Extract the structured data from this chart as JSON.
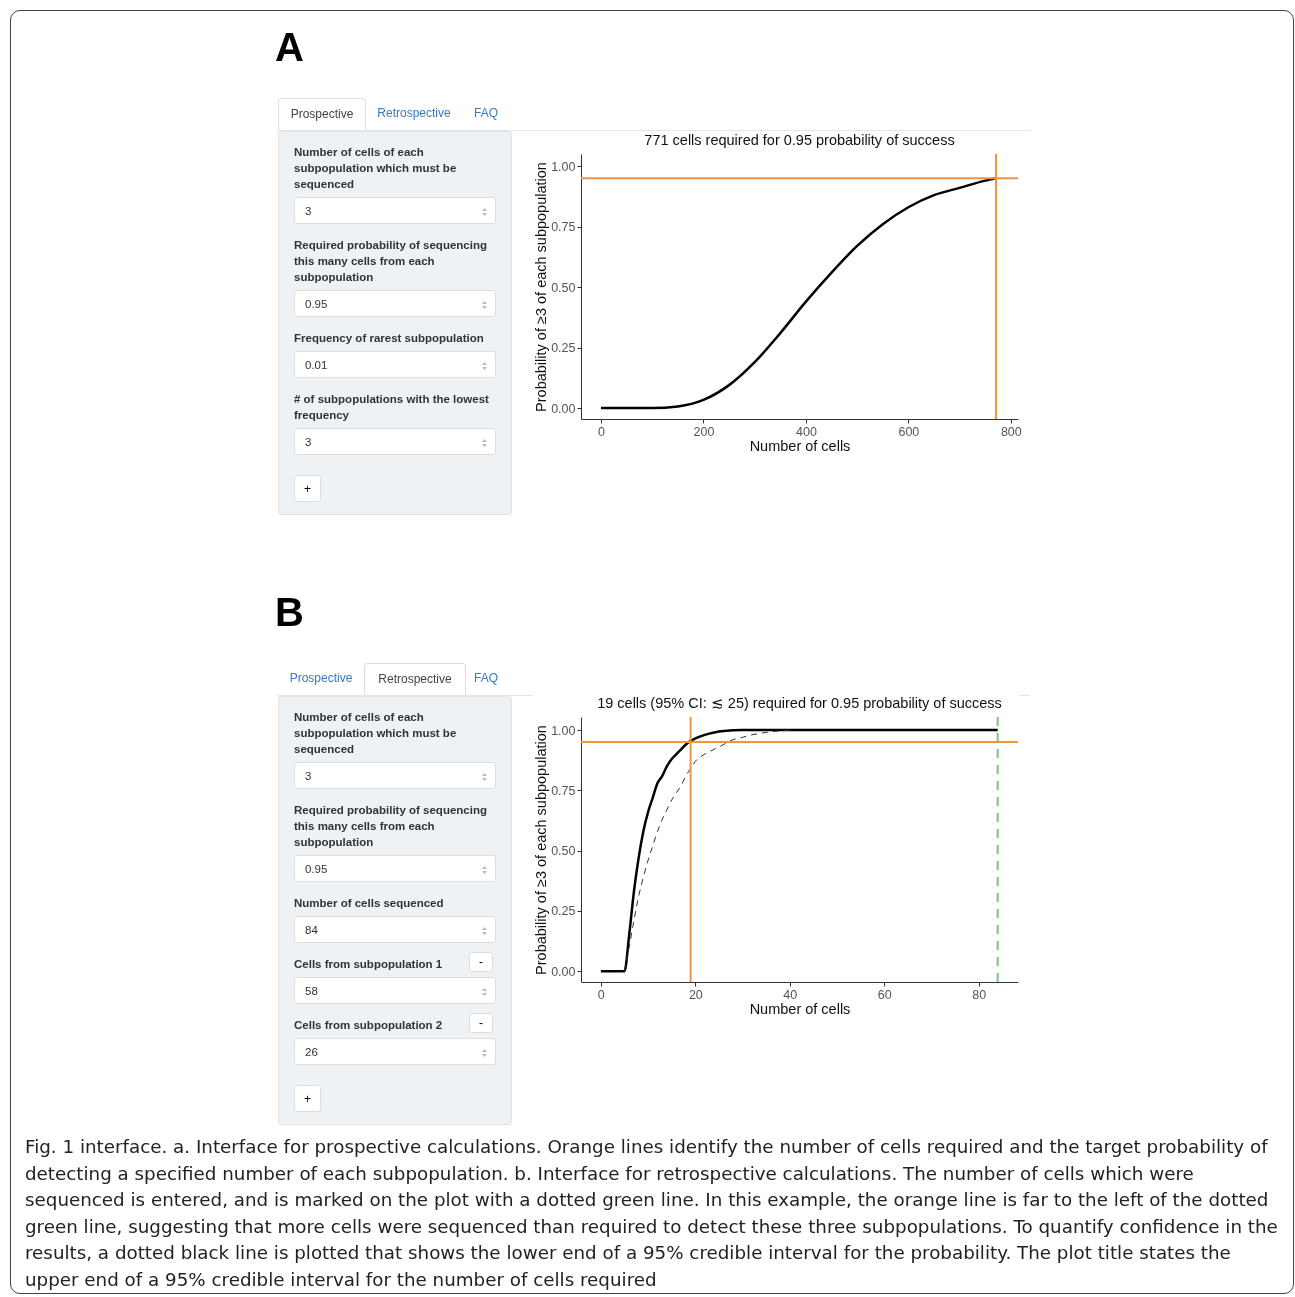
{
  "chart_data": [
    {
      "type": "other",
      "title": "A",
      "annotations": [
        "Prospective",
        "Retrospective",
        "FAQ",
        "Number of cells of each subpopulation which must be sequenced",
        "3",
        "Required probability of sequencing this many cells from each subpopulation",
        "0.95",
        "Frequency of rarest subpopulation",
        "0.01",
        "# of subpopulations with the lowest frequency",
        "3",
        "+"
      ]
    },
    {
      "type": "line",
      "title": "771 cells required for 0.95 probability of success",
      "xlabel": "Number of cells",
      "ylabel": "Probability of ≥3 of each subpopulation",
      "x": [
        0,
        50,
        100,
        150,
        200,
        250,
        300,
        350,
        400,
        450,
        500,
        550,
        600,
        650,
        700,
        750,
        771
      ],
      "series": [
        {
          "color": "#000000",
          "values": [
            0,
            0,
            0,
            0.007,
            0.034,
            0.095,
            0.19,
            0.31,
            0.44,
            0.56,
            0.67,
            0.76,
            0.83,
            0.88,
            0.91,
            0.94,
            0.95
          ]
        }
      ],
      "xlim": [
        -39,
        814
      ],
      "xticks": [
        0,
        200,
        400,
        600,
        800
      ],
      "ylim": [
        -0.045,
        1.05
      ],
      "yticks": [
        {
          "value": 0,
          "label": "0.00"
        },
        {
          "value": 0.25,
          "label": "0.25"
        },
        {
          "value": 0.5,
          "label": "0.50"
        },
        {
          "value": 0.75,
          "label": "0.75"
        },
        {
          "value": 1,
          "label": "1.00"
        }
      ],
      "ref_lines": [
        {
          "axis": "x",
          "value": 771,
          "color": "#f4943a",
          "line_style": "solid"
        },
        {
          "axis": "y",
          "value": 0.95,
          "color": "#f4943a",
          "line_style": "solid"
        }
      ],
      "marker": "none",
      "line_style": "solid"
    },
    {
      "type": "other",
      "title": "B",
      "annotations": [
        "Prospective",
        "Retrospective",
        "FAQ",
        "Number of cells of each subpopulation which must be sequenced",
        "3",
        "Required probability of sequencing this many cells from each subpopulation",
        "0.95",
        "Number of cells sequenced",
        "84",
        "Cells from subpopulation 1",
        "-",
        "58",
        "Cells from subpopulation 2",
        "-",
        "26",
        "+"
      ]
    },
    {
      "type": "line",
      "title": "19 cells (95% CI: ≲ 25) required for 0.95 probability of success",
      "xlabel": "Number of cells",
      "ylabel": "Probability of ≥3 of each subpopulation",
      "series": [
        {
          "color": "#000000",
          "line_style": "solid",
          "x": [
            0,
            5,
            6,
            7,
            8,
            9,
            10,
            11,
            12,
            13,
            14,
            15,
            16,
            17,
            18,
            19,
            20,
            22,
            24,
            26,
            30,
            40,
            84
          ],
          "values": [
            0,
            0,
            0.15,
            0.33,
            0.47,
            0.58,
            0.66,
            0.72,
            0.78,
            0.81,
            0.85,
            0.88,
            0.9,
            0.92,
            0.94,
            0.955,
            0.965,
            0.98,
            0.99,
            0.996,
            1,
            1,
            1
          ]
        },
        {
          "color": "#333333",
          "line_style": "dashed",
          "x": [
            5,
            6,
            7,
            8,
            9,
            10,
            11,
            12,
            13,
            14,
            15,
            16,
            17,
            18,
            19,
            20,
            22,
            24,
            26,
            28,
            30,
            32,
            35,
            40
          ],
          "values": [
            0,
            0.1,
            0.21,
            0.31,
            0.39,
            0.46,
            0.52,
            0.58,
            0.63,
            0.67,
            0.71,
            0.74,
            0.77,
            0.81,
            0.84,
            0.87,
            0.9,
            0.92,
            0.94,
            0.96,
            0.97,
            0.98,
            0.99,
            1
          ]
        }
      ],
      "xlim": [
        -4.2,
        88.3
      ],
      "xticks": [
        0,
        20,
        40,
        60,
        80
      ],
      "ylim": [
        -0.045,
        1.054
      ],
      "yticks": [
        {
          "value": 0,
          "label": "0.00"
        },
        {
          "value": 0.25,
          "label": "0.25"
        },
        {
          "value": 0.5,
          "label": "0.50"
        },
        {
          "value": 0.75,
          "label": "0.75"
        },
        {
          "value": 1,
          "label": "1.00"
        }
      ],
      "ref_lines": [
        {
          "axis": "x",
          "value": 19,
          "color": "#f4943a",
          "line_style": "solid"
        },
        {
          "axis": "y",
          "value": 0.95,
          "color": "#f4943a",
          "line_style": "solid"
        },
        {
          "axis": "x",
          "value": 84,
          "color": "#7fc47a",
          "line_style": "dashed"
        }
      ],
      "marker": "none"
    },
    {
      "type": "other",
      "annotations": [
        "Fig. 1 interface. a. Interface for prospective calculations. Orange lines identify the number of cells required and the target probability of detecting a specified number of each subpopulation. b. Interface for retrospective calculations. The number of cells which were sequenced is entered, and is marked on the plot with a dotted green line. In this example, the orange line is far to the left of the dotted green line, suggesting that more cells were sequenced than required to detect these three subpopulations. To quantify confidence in the results, a dotted black line is plotted that shows the lower end of a 95% credible interval for the probability. The plot title states the upper end of a 95% credible interval for the number of cells required"
      ]
    }
  ]
}
